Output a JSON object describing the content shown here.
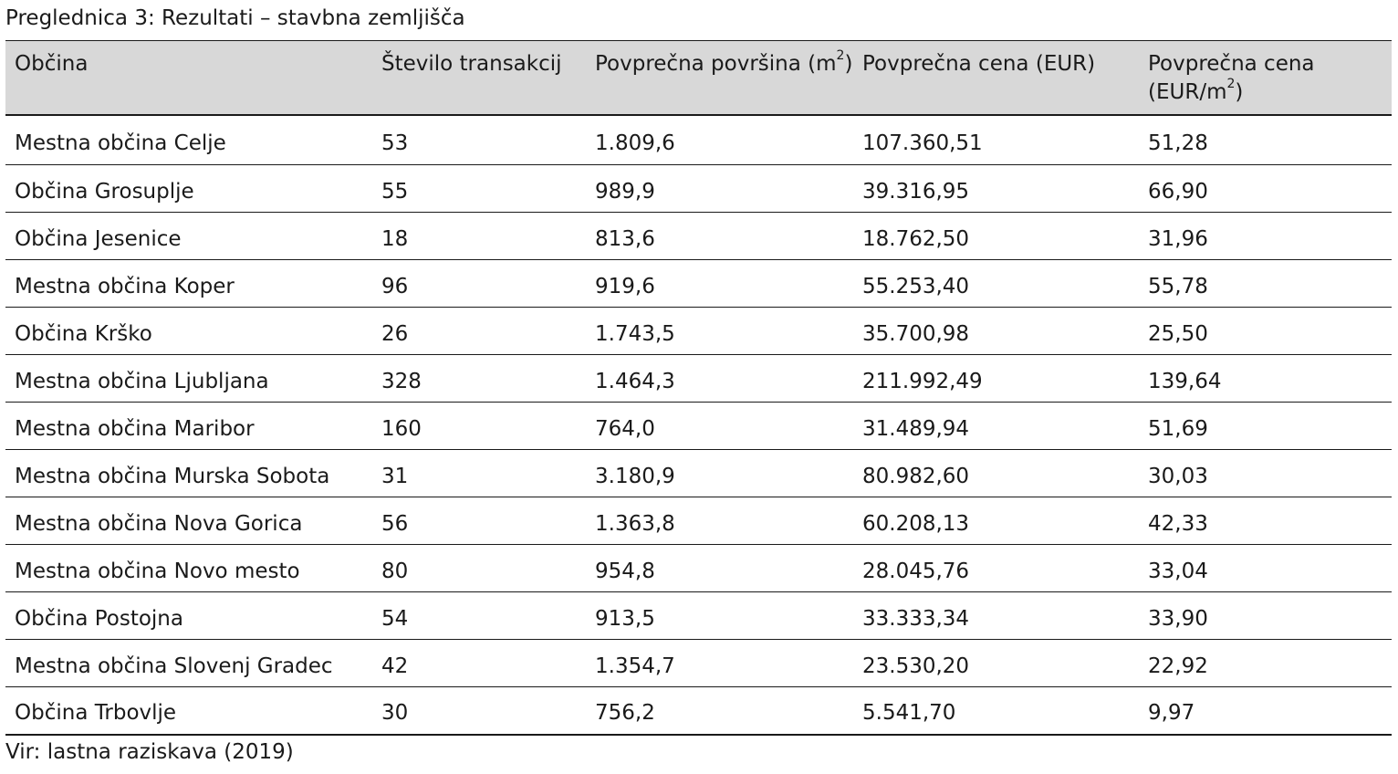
{
  "caption": "Preglednica 3: Rezultati – stavbna zemljišča",
  "source": "Vir: lastna raziskava (2019)",
  "table": {
    "headers": {
      "obcina": "Občina",
      "stevilo": "Število transakcij",
      "povrsina_prefix": "Povprečna površina (m",
      "povrsina_sup": "2",
      "povrsina_suffix": ")",
      "cena": "Povprečna cena (EUR)",
      "cena_m2_line1": "Povprečna cena",
      "cena_m2_prefix": "(EUR/m",
      "cena_m2_sup": "2",
      "cena_m2_suffix": ")"
    },
    "rows": [
      {
        "obcina": "Mestna občina Celje",
        "stevilo": "53",
        "povrsina": "1.809,6",
        "cena": "107.360,51",
        "cena_m2": "51,28"
      },
      {
        "obcina": "Občina Grosuplje",
        "stevilo": "55",
        "povrsina": "989,9",
        "cena": "39.316,95",
        "cena_m2": "66,90"
      },
      {
        "obcina": "Občina Jesenice",
        "stevilo": "18",
        "povrsina": "813,6",
        "cena": "18.762,50",
        "cena_m2": "31,96"
      },
      {
        "obcina": "Mestna občina Koper",
        "stevilo": "96",
        "povrsina": "919,6",
        "cena": "55.253,40",
        "cena_m2": "55,78"
      },
      {
        "obcina": "Občina Krško",
        "stevilo": "26",
        "povrsina": "1.743,5",
        "cena": "35.700,98",
        "cena_m2": "25,50"
      },
      {
        "obcina": "Mestna občina Ljubljana",
        "stevilo": "328",
        "povrsina": "1.464,3",
        "cena": "211.992,49",
        "cena_m2": "139,64"
      },
      {
        "obcina": "Mestna občina Maribor",
        "stevilo": "160",
        "povrsina": "764,0",
        "cena": "31.489,94",
        "cena_m2": "51,69"
      },
      {
        "obcina": "Mestna občina Murska Sobota",
        "stevilo": "31",
        "povrsina": "3.180,9",
        "cena": "80.982,60",
        "cena_m2": "30,03"
      },
      {
        "obcina": "Mestna občina Nova Gorica",
        "stevilo": "56",
        "povrsina": "1.363,8",
        "cena": "60.208,13",
        "cena_m2": "42,33"
      },
      {
        "obcina": "Mestna občina Novo mesto",
        "stevilo": "80",
        "povrsina": "954,8",
        "cena": "28.045,76",
        "cena_m2": "33,04"
      },
      {
        "obcina": "Občina Postojna",
        "stevilo": "54",
        "povrsina": "913,5",
        "cena": "33.333,34",
        "cena_m2": "33,90"
      },
      {
        "obcina": "Mestna občina Slovenj Gradec",
        "stevilo": "42",
        "povrsina": "1.354,7",
        "cena": "23.530,20",
        "cena_m2": "22,92"
      },
      {
        "obcina": "Občina Trbovlje",
        "stevilo": "30",
        "povrsina": "756,2",
        "cena": "5.541,70",
        "cena_m2": "9,97"
      }
    ]
  }
}
